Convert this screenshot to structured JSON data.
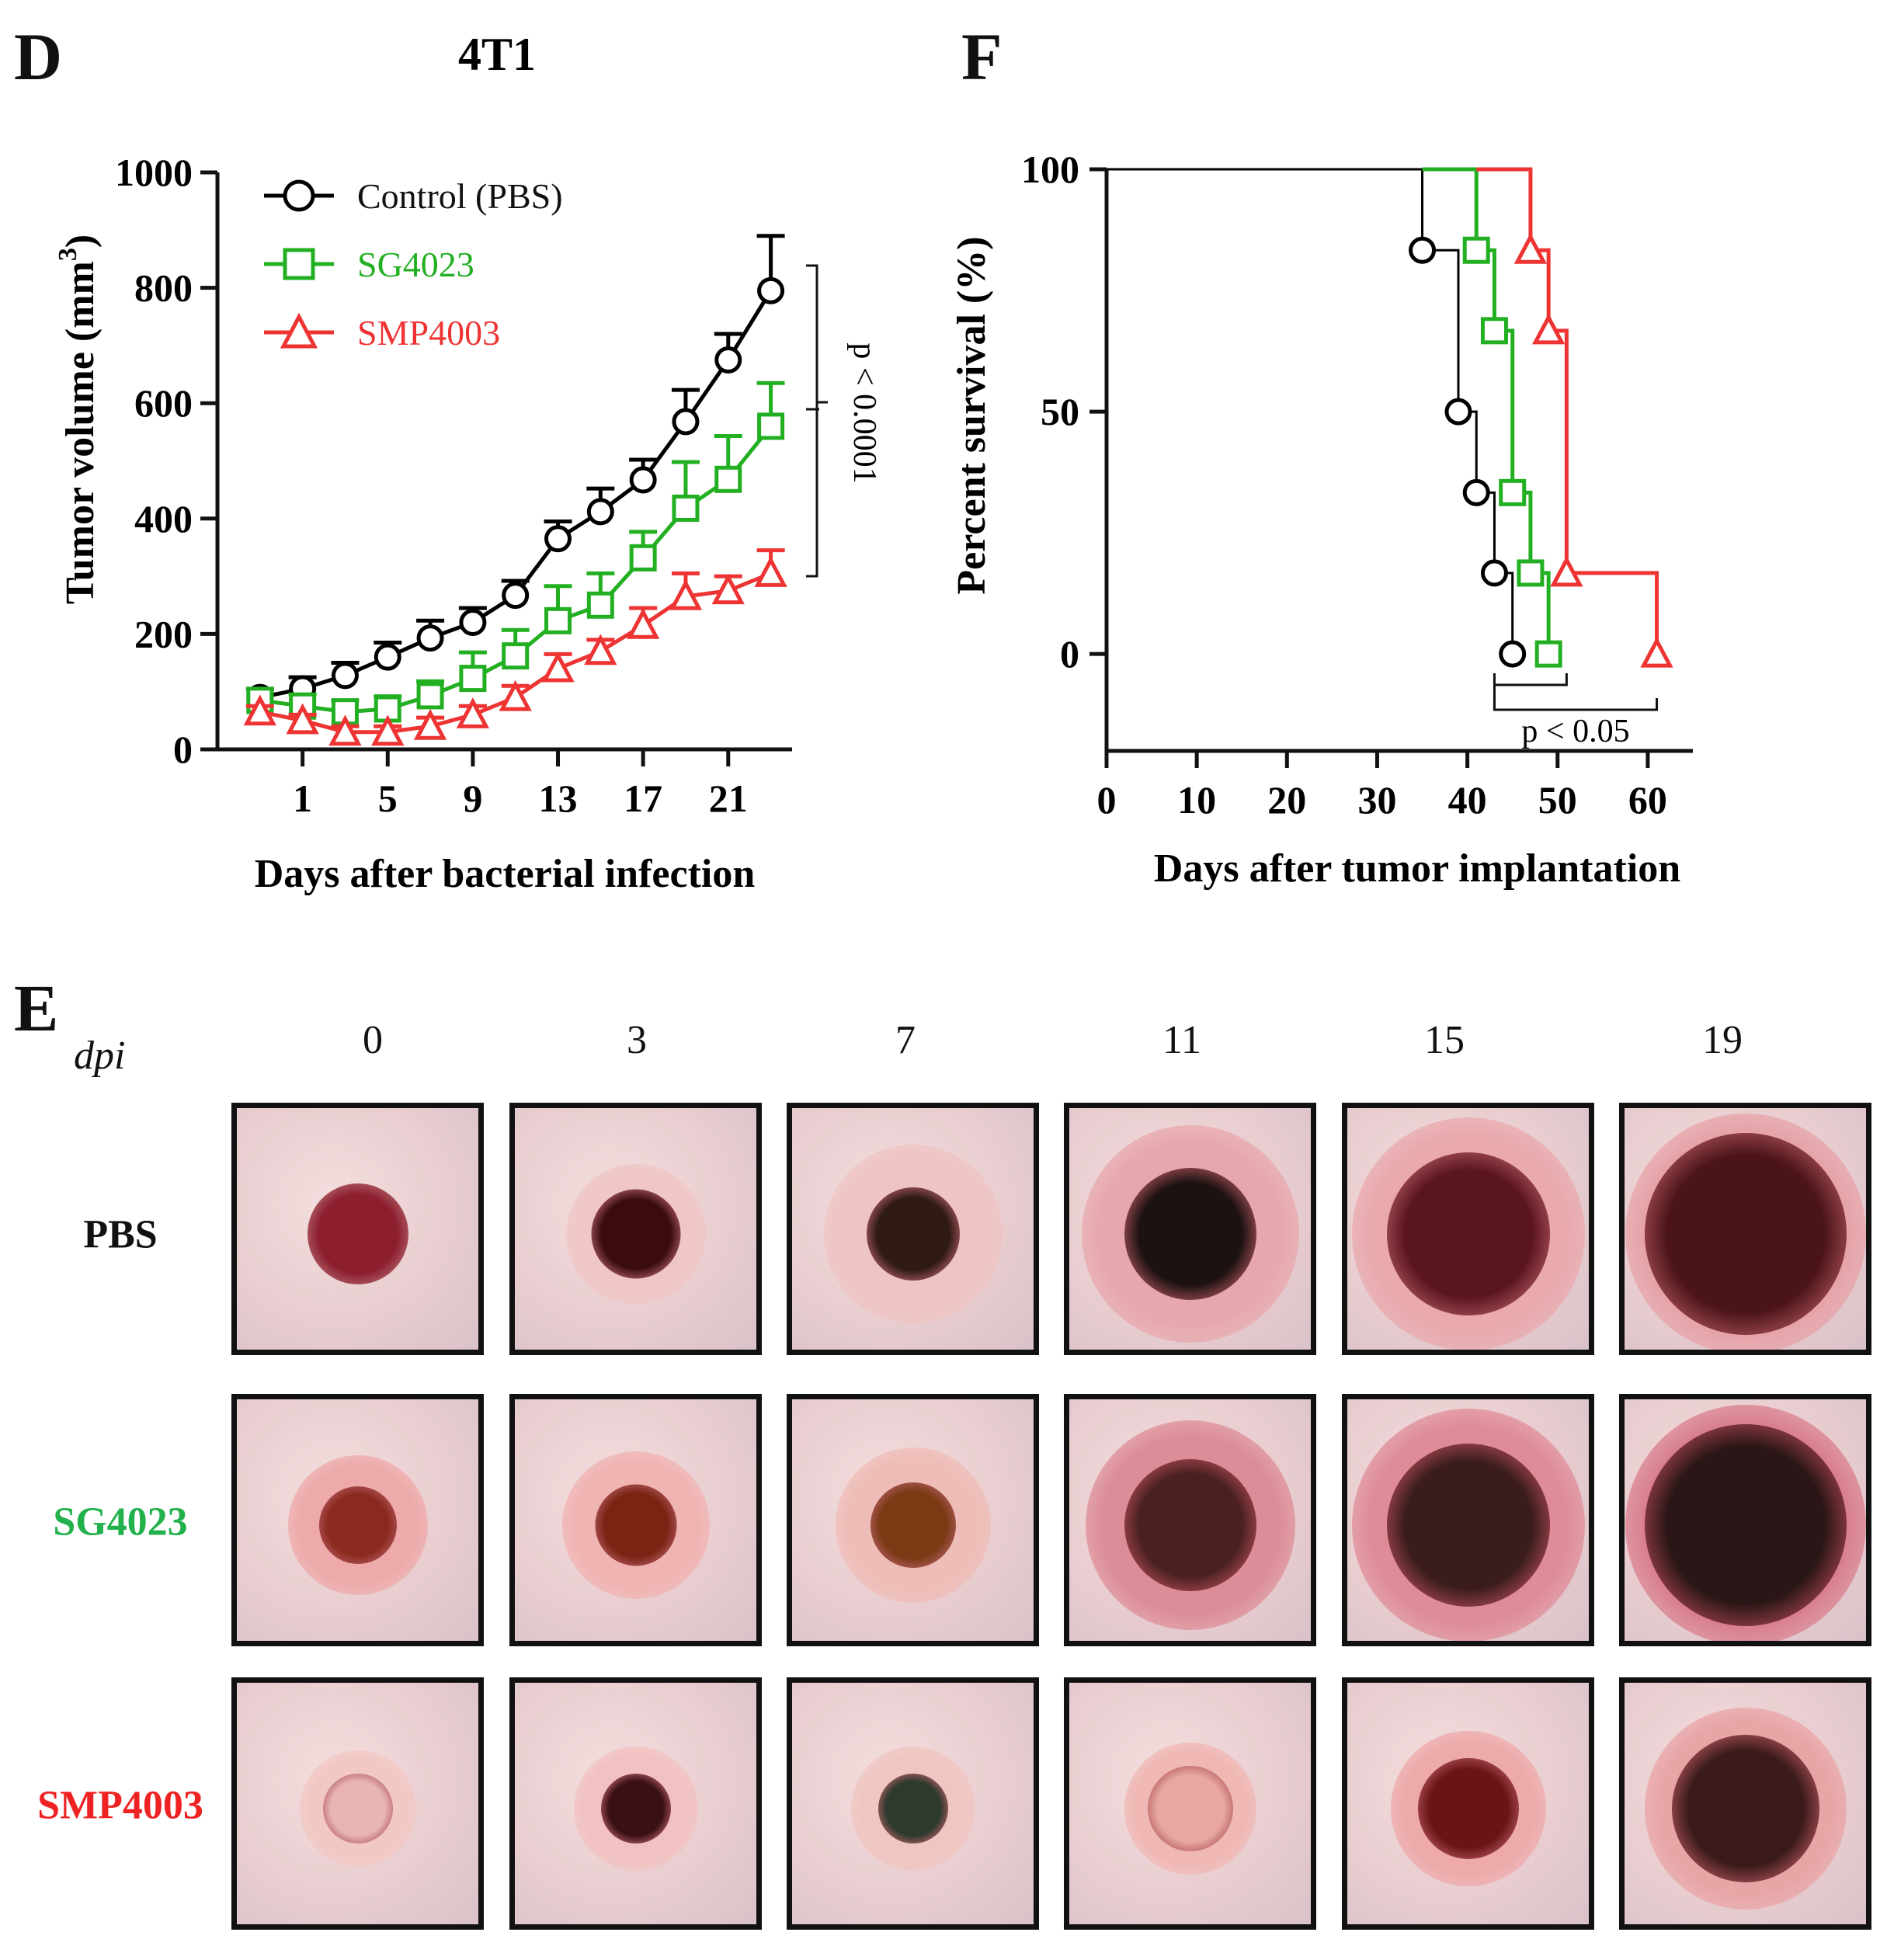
{
  "panels": {
    "d_label": "D",
    "f_label": "F",
    "e_label": "E"
  },
  "panel_d_title": "4T1",
  "chart_data": [
    {
      "type": "line",
      "title": "4T1",
      "xlabel": "Days after bacterial infection",
      "ylabel": "Tumor volume (mm3)",
      "ylabel_main": "Tumor volume (mm",
      "ylabel_sup": "3",
      "ylabel_close": ")",
      "xlim": [
        -3,
        24
      ],
      "ylim": [
        0,
        1000
      ],
      "xticks": [
        1,
        5,
        9,
        13,
        17,
        21
      ],
      "yticks": [
        0,
        200,
        400,
        600,
        800,
        1000
      ],
      "x": [
        -1,
        1,
        3,
        5,
        7,
        9,
        11,
        13,
        15,
        17,
        19,
        21,
        23
      ],
      "series": [
        {
          "name": "Control (PBS)",
          "color": "#000000",
          "marker": "circle",
          "values": [
            90,
            105,
            128,
            160,
            193,
            220,
            267,
            365,
            412,
            467,
            568,
            675,
            795
          ],
          "errors": [
            15,
            20,
            22,
            25,
            30,
            25,
            25,
            30,
            40,
            35,
            55,
            45,
            95
          ]
        },
        {
          "name": "SG4023",
          "color": "#22b022",
          "marker": "square",
          "values": [
            85,
            75,
            65,
            70,
            93,
            123,
            162,
            223,
            250,
            332,
            418,
            468,
            560
          ],
          "errors": [
            20,
            20,
            20,
            22,
            25,
            45,
            45,
            60,
            55,
            45,
            80,
            75,
            75
          ]
        },
        {
          "name": "SMP4003",
          "color": "#ee3333",
          "marker": "triangle",
          "values": [
            65,
            50,
            30,
            30,
            40,
            60,
            90,
            140,
            170,
            215,
            265,
            275,
            305
          ],
          "errors": [
            10,
            10,
            10,
            10,
            15,
            15,
            20,
            25,
            20,
            30,
            40,
            25,
            40
          ]
        }
      ],
      "annotation": "p < 0.0001"
    },
    {
      "type": "line",
      "xlabel": "Days after tumor implantation",
      "ylabel": "Percent survival (%)",
      "xlim": [
        0,
        65
      ],
      "ylim": [
        -20,
        100
      ],
      "xticks": [
        0,
        10,
        20,
        30,
        40,
        50,
        60
      ],
      "yticks": [
        0,
        50,
        100
      ],
      "series": [
        {
          "name": "Control (PBS)",
          "color": "#000000",
          "marker": "circle",
          "steps": [
            [
              0,
              100
            ],
            [
              35,
              100
            ],
            [
              35,
              83.3
            ],
            [
              39,
              83.3
            ],
            [
              39,
              50
            ],
            [
              41,
              50
            ],
            [
              41,
              33.3
            ],
            [
              43,
              33.3
            ],
            [
              43,
              16.7
            ],
            [
              45,
              16.7
            ],
            [
              45,
              0
            ]
          ],
          "points": [
            [
              35,
              83.3
            ],
            [
              39,
              50
            ],
            [
              41,
              33.3
            ],
            [
              43,
              16.7
            ],
            [
              45,
              0
            ]
          ]
        },
        {
          "name": "SG4023",
          "color": "#22b022",
          "marker": "square",
          "steps": [
            [
              35,
              100
            ],
            [
              41,
              100
            ],
            [
              41,
              83.3
            ],
            [
              43,
              83.3
            ],
            [
              43,
              66.7
            ],
            [
              45,
              66.7
            ],
            [
              45,
              33.3
            ],
            [
              47,
              33.3
            ],
            [
              47,
              16.7
            ],
            [
              49,
              16.7
            ],
            [
              49,
              0
            ]
          ],
          "points": [
            [
              41,
              83.3
            ],
            [
              43,
              66.7
            ],
            [
              45,
              33.3
            ],
            [
              47,
              16.7
            ],
            [
              49,
              0
            ]
          ]
        },
        {
          "name": "SMP4003",
          "color": "#ee3333",
          "marker": "triangle",
          "steps": [
            [
              41,
              100
            ],
            [
              47,
              100
            ],
            [
              47,
              83.3
            ],
            [
              49,
              83.3
            ],
            [
              49,
              66.7
            ],
            [
              51,
              66.7
            ],
            [
              51,
              16.7
            ],
            [
              61,
              16.7
            ],
            [
              61,
              0
            ]
          ],
          "points": [
            [
              47,
              83.3
            ],
            [
              49,
              66.7
            ],
            [
              51,
              16.7
            ],
            [
              61,
              0
            ]
          ]
        }
      ],
      "annotation": "p < 0.05"
    }
  ],
  "panel_e": {
    "dpi_label": "dpi",
    "columns": [
      "0",
      "3",
      "7",
      "11",
      "15",
      "19"
    ],
    "rows": [
      {
        "label": "PBS",
        "color": "#111111"
      },
      {
        "label": "SG4023",
        "color": "#22b14c"
      },
      {
        "label": "SMP4003",
        "color": "#ee2222"
      }
    ]
  }
}
